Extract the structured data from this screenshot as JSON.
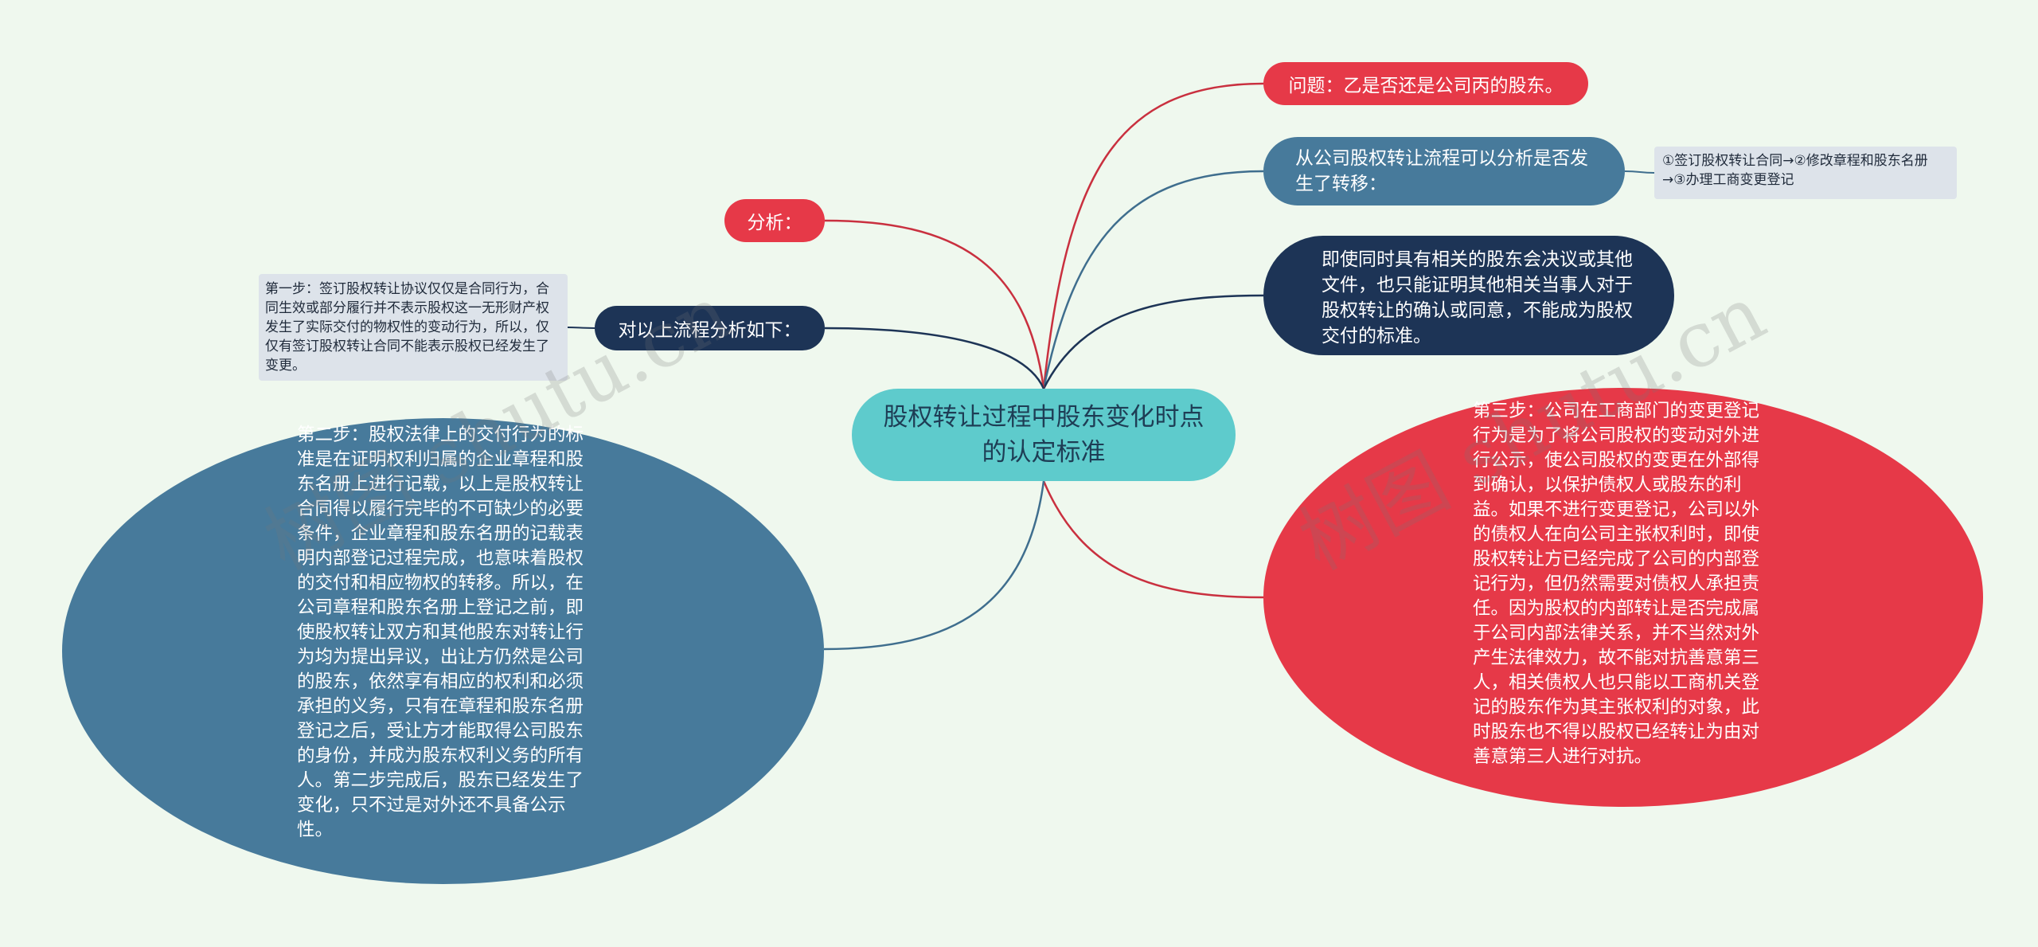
{
  "center": {
    "title": "股权转让过程中股东变化时点的认定标准"
  },
  "right": {
    "question": "问题：乙是否还是公司丙的股东。",
    "flow": "从公司股权转让流程可以分析是否发生了转移：",
    "flow_steps": "①签订股权转让合同→②修改章程和股东名册→③办理工商变更登记",
    "evidence": "即使同时具有相关的股东会决议或其他文件，也只能证明其他相关当事人对于股权转让的确认或同意，不能成为股权交付的标准。",
    "step3": "第三步：公司在工商部门的变更登记行为是为了将公司股权的变动对外进行公示，使公司股权的变更在外部得到确认，以保护债权人或股东的利益。如果不进行变更登记，公司以外的债权人在向公司主张权利时，即使股权转让方已经完成了公司的内部登记行为，但仍然需要对债权人承担责任。因为股权的内部转让是否完成属于公司内部法律关系，并不当然对外产生法律效力，故不能对抗善意第三人，相关债权人也只能以工商机关登记的股东作为其主张权利的对象，此时股东也不得以股权已经转让为由对善意第三人进行对抗。"
  },
  "left": {
    "analysis": "分析：",
    "below": "对以上流程分析如下：",
    "step1": "第一步：签订股权转让协议仅仅是合同行为，合同生效或部分履行并不表示股权这一无形财产权发生了实际交付的物权性的变动行为，所以，仅仅有签订股权转让合同不能表示股权已经发生了变更。",
    "step2": "第二步：股权法律上的交付行为的标准是在证明权利归属的企业章程和股东名册上进行记载，以上是股权转让合同得以履行完毕的不可缺少的必要条件，企业章程和股东名册的记载表明内部登记过程完成，也意味着股权的交付和相应物权的转移。所以，在公司章程和股东名册上登记之前，即使股权转让双方和其他股东对转让行为均为提出异议，出让方仍然是公司的股东，依然享有相应的权利和必须承担的义务，只有在章程和股东名册登记之后，受让方才能取得公司股东的身份，并成为股东权利义务的所有人。第二步完成后，股东已经发生了变化，只不过是对外还不具备公示性。"
  },
  "colors": {
    "red": "#e63948",
    "navy": "#1d3456",
    "steel": "#477a9b",
    "teal": "#5ecbcc",
    "background": "#eff8ee"
  },
  "watermark": "树图 shutu.cn"
}
